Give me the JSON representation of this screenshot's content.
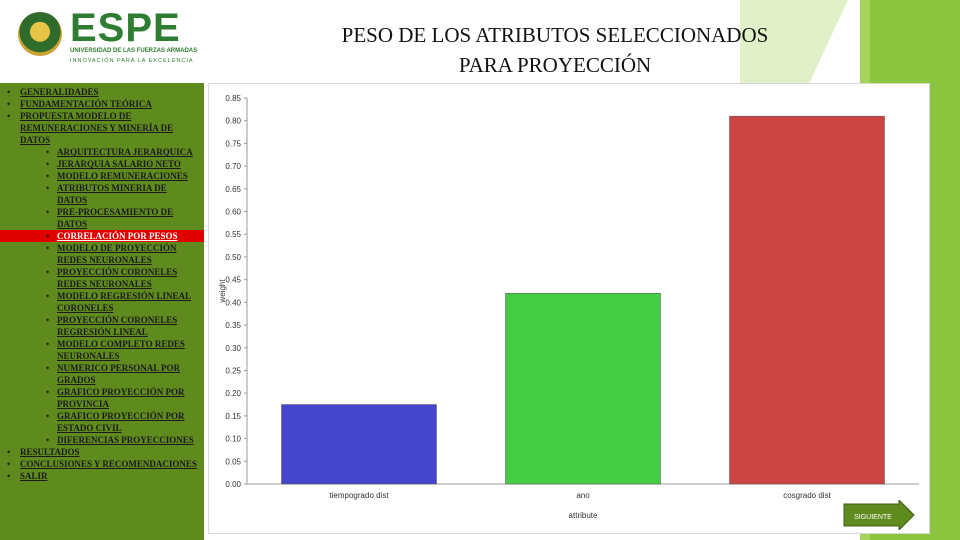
{
  "logo": {
    "name": "ESPE",
    "subtitle": "UNIVERSIDAD DE LAS FUERZAS ARMADAS",
    "tagline": "INNOVACIÓN PARA LA EXCELENCIA"
  },
  "title": {
    "line1": "PESO DE LOS ATRIBUTOS SELECCIONADOS",
    "line2": "PARA PROYECCIÓN"
  },
  "sidebar": {
    "items": [
      {
        "label": "GENERALIDADES",
        "level": 1
      },
      {
        "label": "FUNDAMENTACIÓN TEÓRICA",
        "level": 1
      },
      {
        "label": "PROPUESTA MODELO DE REMUNERACIONES Y MINERÍA DE DATOS",
        "level": 1
      },
      {
        "label": "ARQUITECTURA JERARQUICA",
        "level": 2
      },
      {
        "label": "JERARQUIA SALARIO NETO",
        "level": 2
      },
      {
        "label": "MODELO REMUNERACIONES",
        "level": 2
      },
      {
        "label": "ATRIBUTOS MINERIA DE DATOS",
        "level": 2
      },
      {
        "label": "PRE-PROCESAMIENTO DE DATOS",
        "level": 2
      },
      {
        "label": "CORRELACIÓN POR PESOS",
        "level": 2,
        "active": true
      },
      {
        "label": "MODELO DE PROYECCIÓN REDES NEURONALES",
        "level": 2
      },
      {
        "label": "PROYECCIÓN CORONELES REDES NEURONALES",
        "level": 2
      },
      {
        "label": "MODELO REGRESIÓN LINEAL CORONELES",
        "level": 2
      },
      {
        "label": "PROYECCIÓN CORONELES REGRESIÓN LINEAL",
        "level": 2
      },
      {
        "label": "MODELO COMPLETO REDES NEURONALES",
        "level": 2
      },
      {
        "label": "NUMERICO PERSONAL POR GRADOS",
        "level": 2
      },
      {
        "label": "GRAFICO PROYECCIÓN POR PROVINCIA",
        "level": 2
      },
      {
        "label": "GRAFICO PROYECCIÓN POR ESTADO CIVIL",
        "level": 2
      },
      {
        "label": "DIFERENCIAS PROYECCIONES",
        "level": 2
      },
      {
        "label": "RESULTADOS",
        "level": 1
      },
      {
        "label": "CONCLUSIONES Y RECOMENDACIONES",
        "level": 1
      },
      {
        "label": "SALIR",
        "level": 1
      }
    ],
    "active_color": "#e00000"
  },
  "chart_data": {
    "type": "bar",
    "categories": [
      "tiempogrado dist",
      "ano",
      "cosgrado dist"
    ],
    "values": [
      0.175,
      0.42,
      0.81
    ],
    "colors": [
      "#4444cc",
      "#44cc44",
      "#cc4444"
    ],
    "xlabel": "attribute",
    "ylabel": "weight",
    "ylim": [
      0.0,
      0.85
    ],
    "ytick_labels": [
      "0.00",
      "0.05",
      "0.10",
      "0.15",
      "0.20",
      "0.25",
      "0.30",
      "0.35",
      "0.40",
      "0.45",
      "0.50",
      "0.55",
      "0.60",
      "0.65",
      "0.70",
      "0.75",
      "0.80",
      "0.85"
    ],
    "grid": false
  },
  "next_button": {
    "label": "SIGUIENTE"
  },
  "colors": {
    "sidebar_bg": "#5f8a1e",
    "accent_green": "#8bc53f",
    "logo_green": "#2f7d32"
  }
}
